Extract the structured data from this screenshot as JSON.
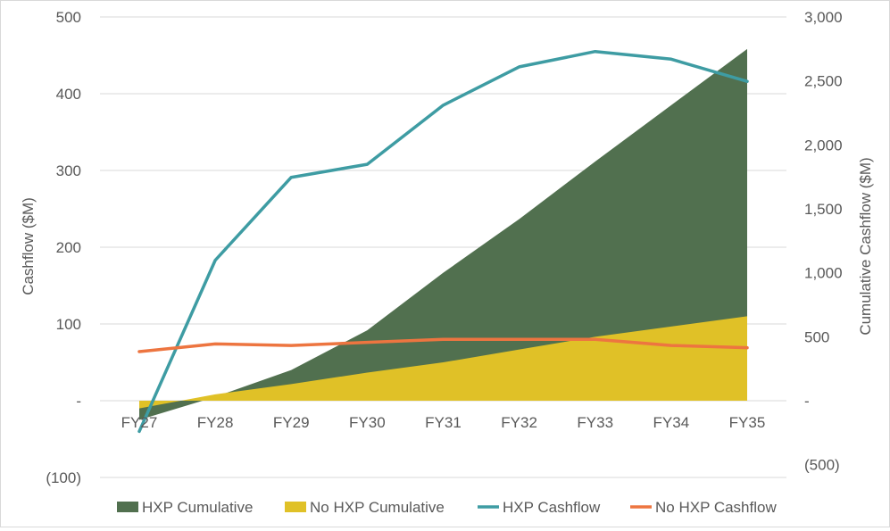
{
  "chart_data": {
    "type": "line",
    "title": "",
    "xlabel": "",
    "ylabel": "Cashflow ($M)",
    "y2label": "Cumulative Cashflow ($M)",
    "categories": [
      "FY27",
      "FY28",
      "FY29",
      "FY30",
      "FY31",
      "FY32",
      "FY33",
      "FY34",
      "FY35"
    ],
    "ylim": [
      -100,
      500
    ],
    "y2lim": [
      -500,
      3000
    ],
    "y_ticks": [
      500,
      400,
      300,
      200,
      100,
      0,
      -100
    ],
    "y_tick_labels": [
      "500",
      "400",
      "300",
      "200",
      "100",
      "-",
      "(100)"
    ],
    "y2_ticks": [
      3000,
      2500,
      2000,
      1500,
      1000,
      500,
      0,
      -500
    ],
    "y2_tick_labels": [
      "3,000",
      "2,500",
      "2,000",
      "1,500",
      "1,000",
      "500",
      "-",
      "(500)"
    ],
    "grid": true,
    "legend": "bottom",
    "series": [
      {
        "name": "HXP Cumulative",
        "type": "area",
        "axis": "right",
        "color": "#51704f",
        "values": [
          -150,
          30,
          240,
          550,
          1000,
          1420,
          1870,
          2310,
          2750
        ]
      },
      {
        "name": "No HXP Cumulative",
        "type": "area",
        "axis": "right",
        "color": "#e0c127",
        "values": [
          -60,
          50,
          130,
          220,
          300,
          400,
          500,
          580,
          660
        ]
      },
      {
        "name": "HXP Cashflow",
        "type": "line",
        "axis": "left",
        "color": "#3e9ca3",
        "values": [
          -40,
          183,
          291,
          308,
          385,
          435,
          455,
          445,
          416
        ]
      },
      {
        "name": "No HXP Cashflow",
        "type": "line",
        "axis": "left",
        "color": "#ed7540",
        "values": [
          64,
          74,
          72,
          76,
          80,
          80,
          80,
          72,
          69
        ]
      }
    ]
  }
}
